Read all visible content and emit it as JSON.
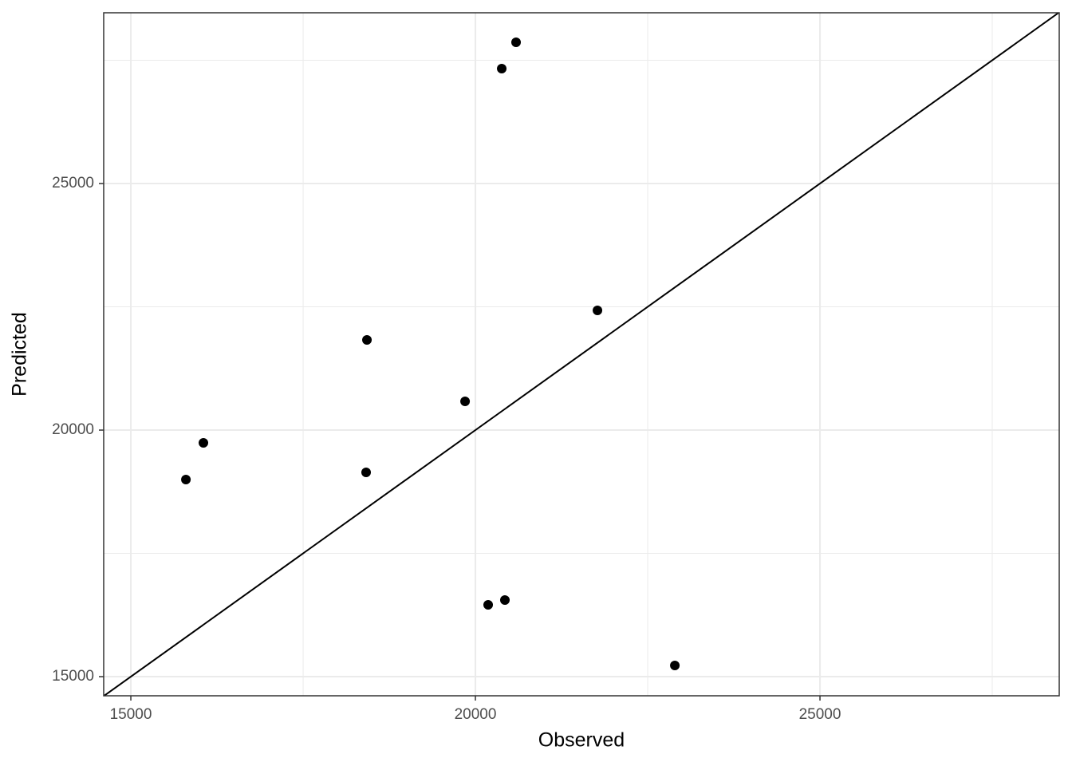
{
  "chart_data": {
    "type": "scatter",
    "x_label": "Observed",
    "y_label": "Predicted",
    "x": [
      15799,
      16053,
      18414,
      18426,
      19850,
      20185,
      20428,
      20382,
      20590,
      21771,
      22894
    ],
    "values": [
      18997,
      19741,
      19142,
      21828,
      20583,
      16456,
      16553,
      27330,
      27864,
      22427,
      15227
    ],
    "color": "#000000",
    "xlim": [
      14606,
      28472
    ],
    "ylim": [
      14612,
      28463
    ],
    "xticks": [
      15000,
      20000,
      25000
    ],
    "yticks": [
      15000,
      20000,
      25000
    ],
    "x_minor_grid": [
      17500,
      22500,
      27500
    ],
    "y_minor_grid": [
      17500,
      22500,
      27500
    ],
    "reference_line": {
      "slope": 1,
      "intercept": 0
    },
    "grid": true
  }
}
